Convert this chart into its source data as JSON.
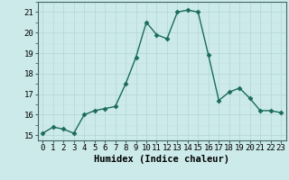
{
  "x": [
    0,
    1,
    2,
    3,
    4,
    5,
    6,
    7,
    8,
    9,
    10,
    11,
    12,
    13,
    14,
    15,
    16,
    17,
    18,
    19,
    20,
    21,
    22,
    23
  ],
  "y": [
    15.1,
    15.4,
    15.3,
    15.1,
    16.0,
    16.2,
    16.3,
    16.4,
    17.5,
    18.8,
    20.5,
    19.9,
    19.7,
    21.0,
    21.1,
    21.0,
    18.9,
    16.7,
    17.1,
    17.3,
    16.8,
    16.2,
    16.2,
    16.1
  ],
  "line_color": "#1a6b5a",
  "marker": "D",
  "marker_size": 2.5,
  "bg_color": "#cceaea",
  "grid_color_major": "#b8d8d8",
  "grid_color_minor": "#c8e0e0",
  "xlabel": "Humidex (Indice chaleur)",
  "ylabel_ticks": [
    15,
    16,
    17,
    18,
    19,
    20,
    21
  ],
  "xtick_labels": [
    "0",
    "1",
    "2",
    "3",
    "4",
    "5",
    "6",
    "7",
    "8",
    "9",
    "10",
    "11",
    "12",
    "13",
    "14",
    "15",
    "16",
    "17",
    "18",
    "19",
    "20",
    "21",
    "22",
    "23"
  ],
  "ylim": [
    14.75,
    21.5
  ],
  "xlim": [
    -0.5,
    23.5
  ],
  "xlabel_fontsize": 7.5,
  "tick_fontsize": 6.5,
  "line_width": 1.0
}
